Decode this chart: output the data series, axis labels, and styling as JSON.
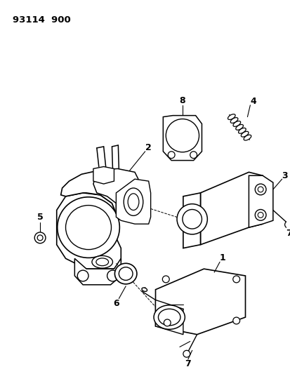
{
  "title": "93114  900",
  "bg_color": "#ffffff",
  "fg_color": "#000000",
  "figsize": [
    4.14,
    5.33
  ],
  "dpi": 100
}
